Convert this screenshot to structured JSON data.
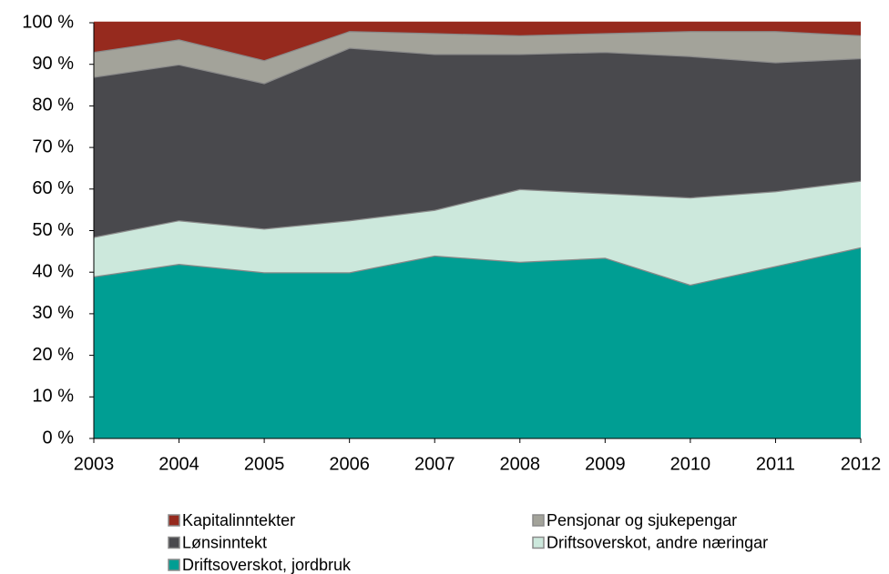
{
  "chart_data": {
    "type": "stacked_area",
    "categories": [
      "2003",
      "2004",
      "2005",
      "2006",
      "2007",
      "2008",
      "2009",
      "2010",
      "2011",
      "2012"
    ],
    "series": [
      {
        "name": "Driftsoverskot, jordbruk",
        "color": "#009e93",
        "values": [
          39,
          42,
          40,
          40,
          44,
          42.5,
          43.5,
          37,
          41.5,
          46
        ]
      },
      {
        "name": "Driftsoverskot, andre næringar",
        "color": "#cce8dc",
        "values": [
          9.5,
          10.5,
          10.5,
          12.5,
          11,
          17.5,
          15.5,
          21,
          18,
          16
        ]
      },
      {
        "name": "Lønsinntekt",
        "color": "#49494d",
        "values": [
          38.5,
          37.5,
          35,
          41.5,
          37.5,
          32.5,
          34,
          34,
          31,
          29.5
        ]
      },
      {
        "name": "Pensjonar og sjukepengar",
        "color": "#a3a39a",
        "values": [
          6,
          6,
          5.5,
          4,
          5,
          4.5,
          4.5,
          6,
          7.5,
          5.5
        ]
      },
      {
        "name": "Kapitalinntekter",
        "color": "#962a1e",
        "values": [
          7,
          4,
          9,
          2,
          2.5,
          3,
          2.5,
          2,
          2,
          3
        ]
      }
    ],
    "ylim": [
      0,
      100
    ],
    "yticks": [
      {
        "value": 0,
        "label": "0 %"
      },
      {
        "value": 10,
        "label": "10 %"
      },
      {
        "value": 20,
        "label": "20 %"
      },
      {
        "value": 30,
        "label": "30 %"
      },
      {
        "value": 40,
        "label": "40 %"
      },
      {
        "value": 50,
        "label": "50 %"
      },
      {
        "value": 60,
        "label": "60 %"
      },
      {
        "value": 70,
        "label": "70 %"
      },
      {
        "value": 80,
        "label": "80 %"
      },
      {
        "value": 90,
        "label": "90 %"
      },
      {
        "value": 100,
        "label": "100 %"
      }
    ]
  }
}
